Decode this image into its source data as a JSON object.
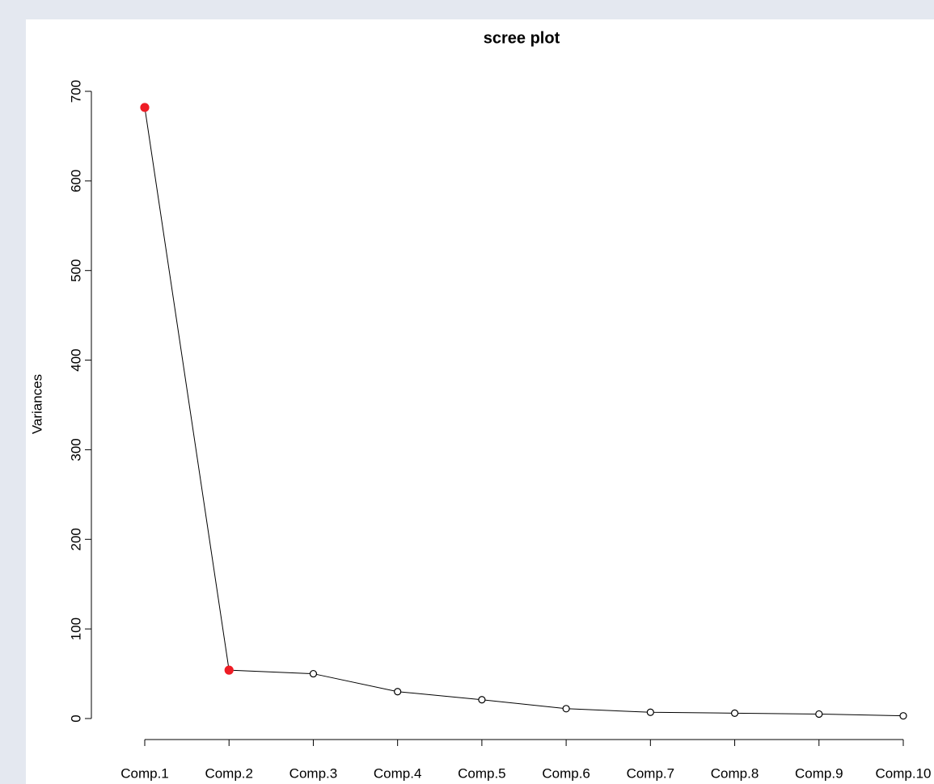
{
  "chart_data": {
    "type": "line",
    "title": "scree   plot",
    "y_label": "Variances",
    "categories": [
      "Comp.1",
      "Comp.2",
      "Comp.3",
      "Comp.4",
      "Comp.5",
      "Comp.6",
      "Comp.7",
      "Comp.8",
      "Comp.9",
      "Comp.10"
    ],
    "values": [
      682,
      54,
      50,
      30,
      21,
      11,
      7,
      6,
      5,
      3
    ],
    "color": "#000000",
    "marker_fill": [
      "#ee1c25",
      "#ee1c25",
      "#ffffff",
      "#ffffff",
      "#ffffff",
      "#ffffff",
      "#ffffff",
      "#ffffff",
      "#ffffff",
      "#ffffff"
    ],
    "ylim": [
      0,
      700
    ],
    "yticks": [
      0,
      100,
      200,
      300,
      400,
      500,
      600,
      700
    ],
    "grid": false
  }
}
